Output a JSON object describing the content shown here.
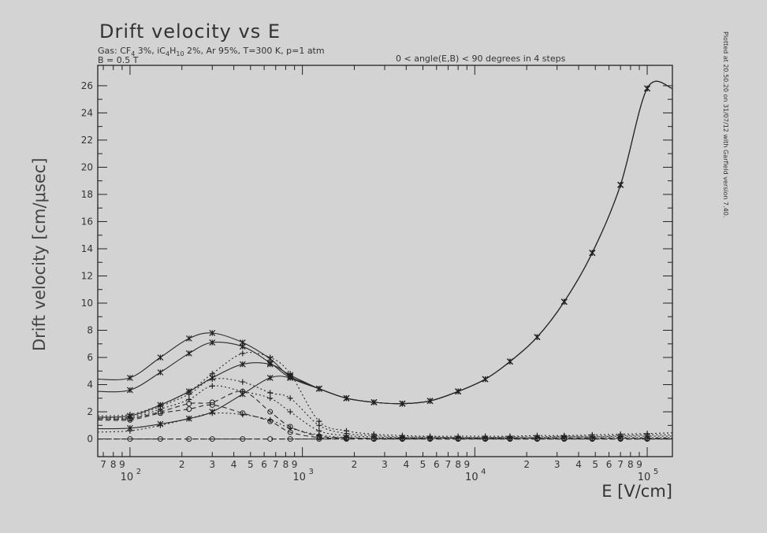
{
  "chart_data": {
    "type": "line",
    "title": "Drift velocity vs E",
    "gas_line_parts": [
      "Gas: CF",
      "4",
      " 3%, iC",
      "4",
      "H",
      "10",
      " 2%, Ar 95%, T=300 K, p=1 atm"
    ],
    "bfield_line": "B = 0.5 T",
    "angle_line": "0 < angle(E,B) < 90 degrees in 4 steps",
    "xlabel": "E [V/cm]",
    "ylabel": "Drift velocity [cm/μsec]",
    "stamp": "Plotted at 20.50.20 on 31/07/12 with Garfield version 7.40.",
    "x_scale": "log",
    "xlim": [
      65,
      140000
    ],
    "ylim": [
      -1.3,
      27.5
    ],
    "y_ticks": [
      0,
      2,
      4,
      6,
      8,
      10,
      12,
      14,
      16,
      18,
      20,
      22,
      24,
      26
    ],
    "x_major_ticks": [
      {
        "value": 100,
        "base": "10",
        "exp": "2"
      },
      {
        "value": 1000,
        "base": "10",
        "exp": "3"
      },
      {
        "value": 10000,
        "base": "10",
        "exp": "4"
      },
      {
        "value": 100000,
        "base": "10",
        "exp": "5"
      }
    ],
    "x_minor_ticks": [
      {
        "value": 70,
        "label": "7"
      },
      {
        "value": 80,
        "label": "8"
      },
      {
        "value": 90,
        "label": "9"
      },
      {
        "value": 200,
        "label": "2"
      },
      {
        "value": 300,
        "label": "3"
      },
      {
        "value": 400,
        "label": "4"
      },
      {
        "value": 500,
        "label": "5"
      },
      {
        "value": 600,
        "label": "6"
      },
      {
        "value": 700,
        "label": "7"
      },
      {
        "value": 800,
        "label": "8"
      },
      {
        "value": 900,
        "label": "9"
      },
      {
        "value": 2000,
        "label": "2"
      },
      {
        "value": 3000,
        "label": "3"
      },
      {
        "value": 4000,
        "label": "4"
      },
      {
        "value": 5000,
        "label": "5"
      },
      {
        "value": 6000,
        "label": "6"
      },
      {
        "value": 7000,
        "label": "7"
      },
      {
        "value": 8000,
        "label": "8"
      },
      {
        "value": 9000,
        "label": "9"
      },
      {
        "value": 20000,
        "label": "2"
      },
      {
        "value": 30000,
        "label": "3"
      },
      {
        "value": 40000,
        "label": "4"
      },
      {
        "value": 50000,
        "label": "5"
      },
      {
        "value": 60000,
        "label": "6"
      },
      {
        "value": 70000,
        "label": "7"
      },
      {
        "value": 80000,
        "label": "8"
      },
      {
        "value": 90000,
        "label": "9"
      }
    ],
    "x": [
      65,
      100,
      150,
      220,
      300,
      450,
      650,
      850,
      1250,
      1800,
      2600,
      3800,
      5500,
      8000,
      11500,
      16000,
      23000,
      33000,
      48000,
      70000,
      100000,
      140000
    ],
    "series": [
      {
        "marker": "x",
        "dash": "solid",
        "values": [
          4.4,
          4.5,
          6.0,
          7.4,
          7.8,
          7.1,
          5.9,
          4.6,
          3.7,
          3.0,
          2.7,
          2.6,
          2.8,
          3.5,
          4.4,
          5.7,
          7.5,
          10.1,
          13.7,
          18.7,
          25.8,
          25.8
        ]
      },
      {
        "marker": "x",
        "dash": "solid",
        "values": [
          3.5,
          3.6,
          4.9,
          6.3,
          7.1,
          6.8,
          5.6,
          4.5,
          3.7,
          3.0,
          2.7,
          2.6,
          2.8,
          3.5,
          4.4,
          5.7,
          7.5,
          10.1,
          13.7,
          18.7,
          25.8,
          25.8
        ]
      },
      {
        "marker": "x",
        "dash": "solid",
        "values": [
          1.6,
          1.7,
          2.5,
          3.5,
          4.5,
          5.5,
          5.5,
          4.7,
          3.7,
          3.0,
          2.7,
          2.6,
          2.8,
          3.5,
          4.4,
          5.7,
          7.5,
          10.1,
          13.7,
          18.7,
          25.8,
          25.8
        ]
      },
      {
        "marker": "x",
        "dash": "solid",
        "values": [
          0.75,
          0.8,
          1.1,
          1.5,
          2.0,
          3.3,
          4.5,
          4.5,
          3.7,
          3.0,
          2.7,
          2.6,
          2.8,
          3.5,
          4.4,
          5.7,
          7.5,
          10.1,
          13.7,
          18.7,
          25.8,
          25.8
        ]
      },
      {
        "marker": "+",
        "dash": "dotted",
        "values": [
          1.7,
          1.8,
          2.5,
          3.5,
          4.8,
          6.3,
          6.0,
          4.8,
          1.3,
          0.6,
          0.35,
          0.25,
          0.2,
          0.2,
          0.2,
          0.2,
          0.25,
          0.25,
          0.3,
          0.35,
          0.4,
          0.45
        ]
      },
      {
        "marker": "+",
        "dash": "dotted",
        "values": [
          1.6,
          1.6,
          2.4,
          3.3,
          4.4,
          4.2,
          3.4,
          3.0,
          1.0,
          0.4,
          0.25,
          0.15,
          0.15,
          0.1,
          0.1,
          0.15,
          0.15,
          0.2,
          0.2,
          0.25,
          0.3,
          0.3
        ]
      },
      {
        "marker": "+",
        "dash": "dotted",
        "values": [
          1.5,
          1.5,
          2.2,
          2.9,
          3.9,
          3.5,
          3.0,
          2.0,
          0.6,
          0.25,
          0.15,
          0.1,
          0.1,
          0.1,
          0.1,
          0.1,
          0.1,
          0.15,
          0.15,
          0.2,
          0.2,
          0.2
        ]
      },
      {
        "marker": "+",
        "dash": "dotted",
        "values": [
          0.5,
          0.6,
          1.0,
          1.5,
          1.9,
          1.8,
          1.4,
          0.8,
          0.3,
          0.1,
          0.05,
          0.05,
          0.05,
          0.05,
          0.05,
          0.05,
          0.05,
          0.1,
          0.1,
          0.1,
          0.1,
          0.1
        ]
      },
      {
        "marker": "o",
        "dash": "dashed",
        "values": [
          1.5,
          1.5,
          2.0,
          2.6,
          2.7,
          3.5,
          2.0,
          0.9,
          0.2,
          0.1,
          0.05,
          0.05,
          0.05,
          0.05,
          0.05,
          0.05,
          0.05,
          0.05,
          0.05,
          0.05,
          0.05,
          0.05
        ]
      },
      {
        "marker": "o",
        "dash": "dashed",
        "values": [
          1.4,
          1.4,
          1.9,
          2.2,
          2.5,
          1.9,
          1.3,
          0.5,
          0.1,
          0.05,
          0.0,
          0.0,
          0.0,
          0.0,
          0.0,
          0.0,
          0.0,
          0.0,
          0.0,
          0.0,
          0.0,
          0.0
        ]
      },
      {
        "marker": "o",
        "dash": "dashed",
        "values": [
          0.0,
          0.0,
          0.0,
          0.0,
          0.0,
          0.0,
          0.0,
          0.0,
          0.0,
          0.0,
          0.0,
          0.0,
          0.0,
          0.0,
          0.0,
          0.0,
          0.0,
          0.0,
          0.0,
          0.0,
          0.0,
          0.0
        ]
      }
    ]
  }
}
